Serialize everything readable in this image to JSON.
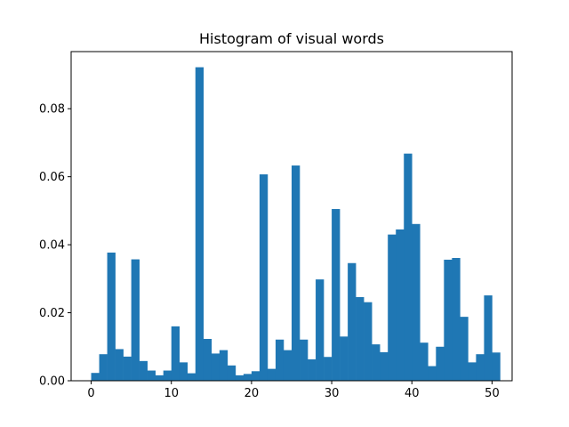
{
  "chart_data": {
    "type": "bar",
    "title": "Histogram of visual words",
    "xlabel": "",
    "ylabel": "",
    "bin_start": 0,
    "bin_width": 1,
    "values": [
      0.0023,
      0.0078,
      0.0377,
      0.0093,
      0.0071,
      0.0357,
      0.0058,
      0.003,
      0.0016,
      0.003,
      0.016,
      0.0054,
      0.0022,
      0.0922,
      0.0123,
      0.008,
      0.009,
      0.0045,
      0.0016,
      0.002,
      0.0028,
      0.0607,
      0.0035,
      0.0121,
      0.009,
      0.0633,
      0.0121,
      0.0063,
      0.0298,
      0.007,
      0.0505,
      0.013,
      0.0346,
      0.0246,
      0.0231,
      0.0107,
      0.0084,
      0.043,
      0.0445,
      0.0668,
      0.0461,
      0.0112,
      0.0043,
      0.01,
      0.0356,
      0.0361,
      0.0188,
      0.0054,
      0.0078,
      0.0251,
      0.0083
    ],
    "xlim": [
      -2.5,
      52.5
    ],
    "ylim": [
      0,
      0.0968
    ],
    "xticks": [
      "0",
      "10",
      "20",
      "30",
      "40",
      "50"
    ],
    "xtick_values": [
      0,
      10,
      20,
      30,
      40,
      50
    ],
    "yticks": [
      "0.00",
      "0.02",
      "0.04",
      "0.06",
      "0.08"
    ],
    "ytick_values": [
      0,
      0.02,
      0.04,
      0.06,
      0.08
    ],
    "grid": false,
    "bar_color": "#1f77b4"
  }
}
